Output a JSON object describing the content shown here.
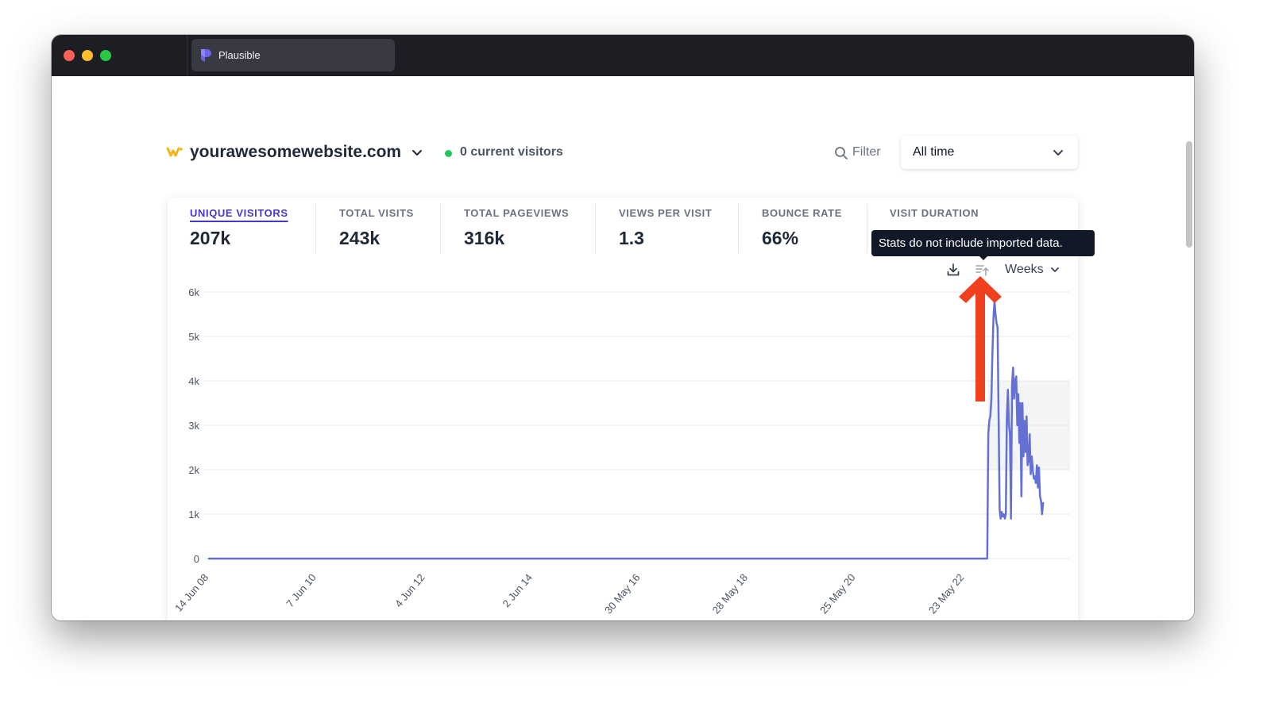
{
  "window": {
    "tab_title": "Plausible"
  },
  "header": {
    "site_name": "yourawesomewebsite.com",
    "current_visitors": "0 current visitors",
    "filter_label": "Filter",
    "period_label": "All time"
  },
  "stats": [
    {
      "label": "UNIQUE VISITORS",
      "value": "207k",
      "active": true
    },
    {
      "label": "TOTAL VISITS",
      "value": "243k",
      "active": false
    },
    {
      "label": "TOTAL PAGEVIEWS",
      "value": "316k",
      "active": false
    },
    {
      "label": "VIEWS PER VISIT",
      "value": "1.3",
      "active": false
    },
    {
      "label": "BOUNCE RATE",
      "value": "66%",
      "active": false
    },
    {
      "label": "VISIT DURATION",
      "value": "",
      "active": false
    }
  ],
  "tooltip": {
    "text": "Stats do not include imported data."
  },
  "controls": {
    "interval_label": "Weeks"
  },
  "colors": {
    "line": "#6470d4",
    "accent": "#4338ca",
    "live": "#22c55e",
    "arrow": "#f0401f",
    "site_icon": "#f5b418"
  },
  "icons": {
    "download": "download-icon",
    "imported": "imported-data-icon",
    "filter": "search-icon",
    "chevron": "chevron-down-icon"
  },
  "chart_data": {
    "type": "line",
    "title": "",
    "xlabel": "",
    "ylabel": "",
    "ylim": [
      0,
      6000
    ],
    "y_ticks": [
      0,
      1000,
      2000,
      3000,
      4000,
      5000,
      6000
    ],
    "y_tick_labels": [
      "0",
      "1k",
      "2k",
      "3k",
      "4k",
      "5k",
      "6k"
    ],
    "x_tick_labels": [
      "14 Jun 08",
      "7 Jun 10",
      "4 Jun 12",
      "2 Jun 14",
      "30 May 16",
      "28 May 18",
      "25 May 20",
      "23 May 22"
    ],
    "x_tick_index": [
      0,
      104,
      209,
      313,
      417,
      521,
      625,
      730
    ],
    "x_count": 833,
    "grid": true,
    "series": [
      {
        "points": [
          [
            0,
            0
          ],
          [
            752,
            0
          ],
          [
            753,
            2800
          ],
          [
            754,
            3100
          ],
          [
            755,
            3200
          ],
          [
            756,
            3600
          ],
          [
            757,
            4600
          ],
          [
            758,
            5400
          ],
          [
            759,
            5800
          ],
          [
            760,
            5500
          ],
          [
            761,
            5300
          ],
          [
            762,
            5200
          ],
          [
            763,
            3200
          ],
          [
            764,
            1100
          ],
          [
            765,
            900
          ],
          [
            766,
            1050
          ],
          [
            767,
            950
          ],
          [
            768,
            1000
          ],
          [
            769,
            900
          ],
          [
            770,
            1000
          ],
          [
            771,
            3200
          ],
          [
            772,
            3800
          ],
          [
            773,
            3000
          ],
          [
            774,
            2800
          ],
          [
            775,
            900
          ],
          [
            776,
            3900
          ],
          [
            777,
            4300
          ],
          [
            778,
            3600
          ],
          [
            779,
            4000
          ],
          [
            780,
            4100
          ],
          [
            781,
            3000
          ],
          [
            782,
            3700
          ],
          [
            783,
            2600
          ],
          [
            784,
            3500
          ],
          [
            785,
            1400
          ],
          [
            786,
            3500
          ],
          [
            787,
            2300
          ],
          [
            788,
            3100
          ],
          [
            789,
            2400
          ],
          [
            790,
            3200
          ],
          [
            791,
            2100
          ],
          [
            792,
            2200
          ],
          [
            793,
            2800
          ],
          [
            794,
            1900
          ],
          [
            795,
            2300
          ],
          [
            796,
            2000
          ],
          [
            797,
            1800
          ],
          [
            798,
            1850
          ],
          [
            799,
            1700
          ],
          [
            800,
            2100
          ],
          [
            801,
            1600
          ],
          [
            802,
            2050
          ],
          [
            803,
            1400
          ],
          [
            804,
            1300
          ],
          [
            805,
            1000
          ],
          [
            806,
            1250
          ]
        ]
      }
    ]
  }
}
